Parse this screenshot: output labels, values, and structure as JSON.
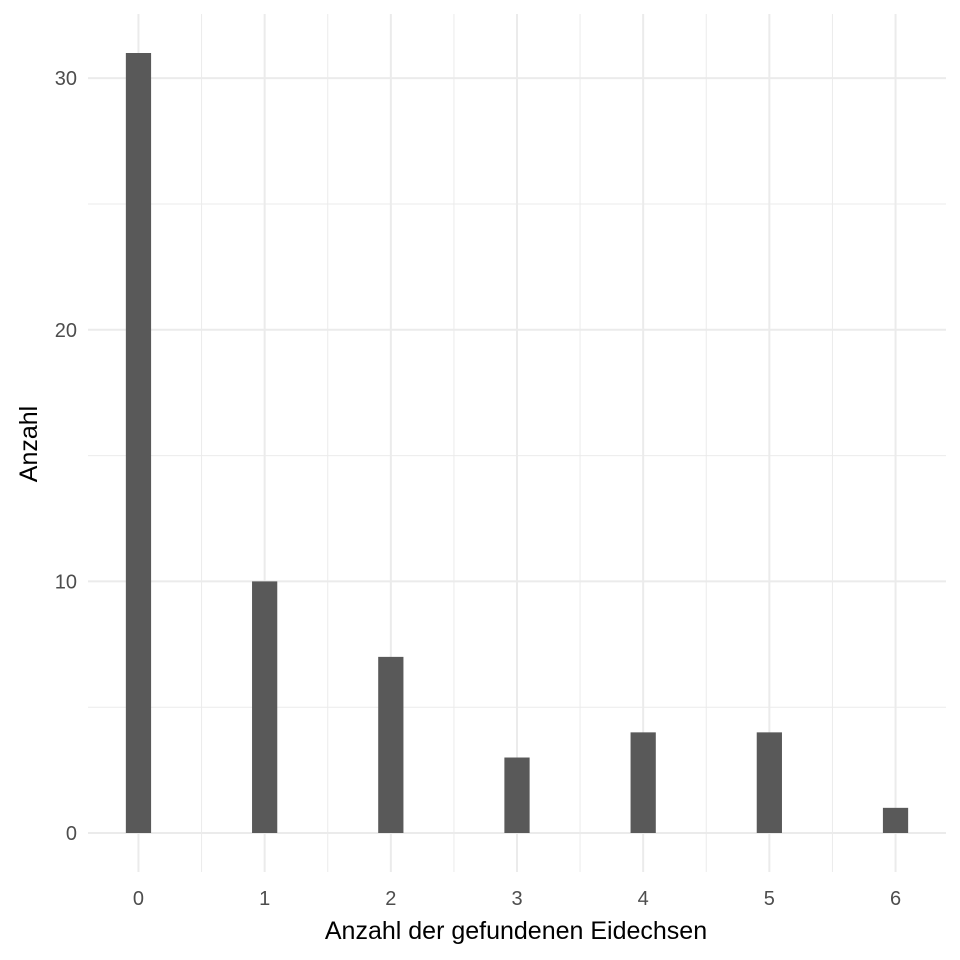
{
  "chart_data": {
    "type": "bar",
    "categories": [
      "0",
      "1",
      "2",
      "3",
      "4",
      "5",
      "6"
    ],
    "values": [
      31,
      10,
      7,
      3,
      4,
      4,
      1
    ],
    "xlabel": "Anzahl der gefundenen Eidechsen",
    "ylabel": "Anzahl",
    "x_ticks": [
      "0",
      "1",
      "2",
      "3",
      "4",
      "5",
      "6"
    ],
    "y_ticks": [
      "0",
      "10",
      "20",
      "30"
    ],
    "xlim": [
      -0.4,
      6.4
    ],
    "ylim": [
      -1.55,
      32.55
    ],
    "bar_color": "#595959",
    "grid_color": "#ebebeb",
    "grid": true
  }
}
